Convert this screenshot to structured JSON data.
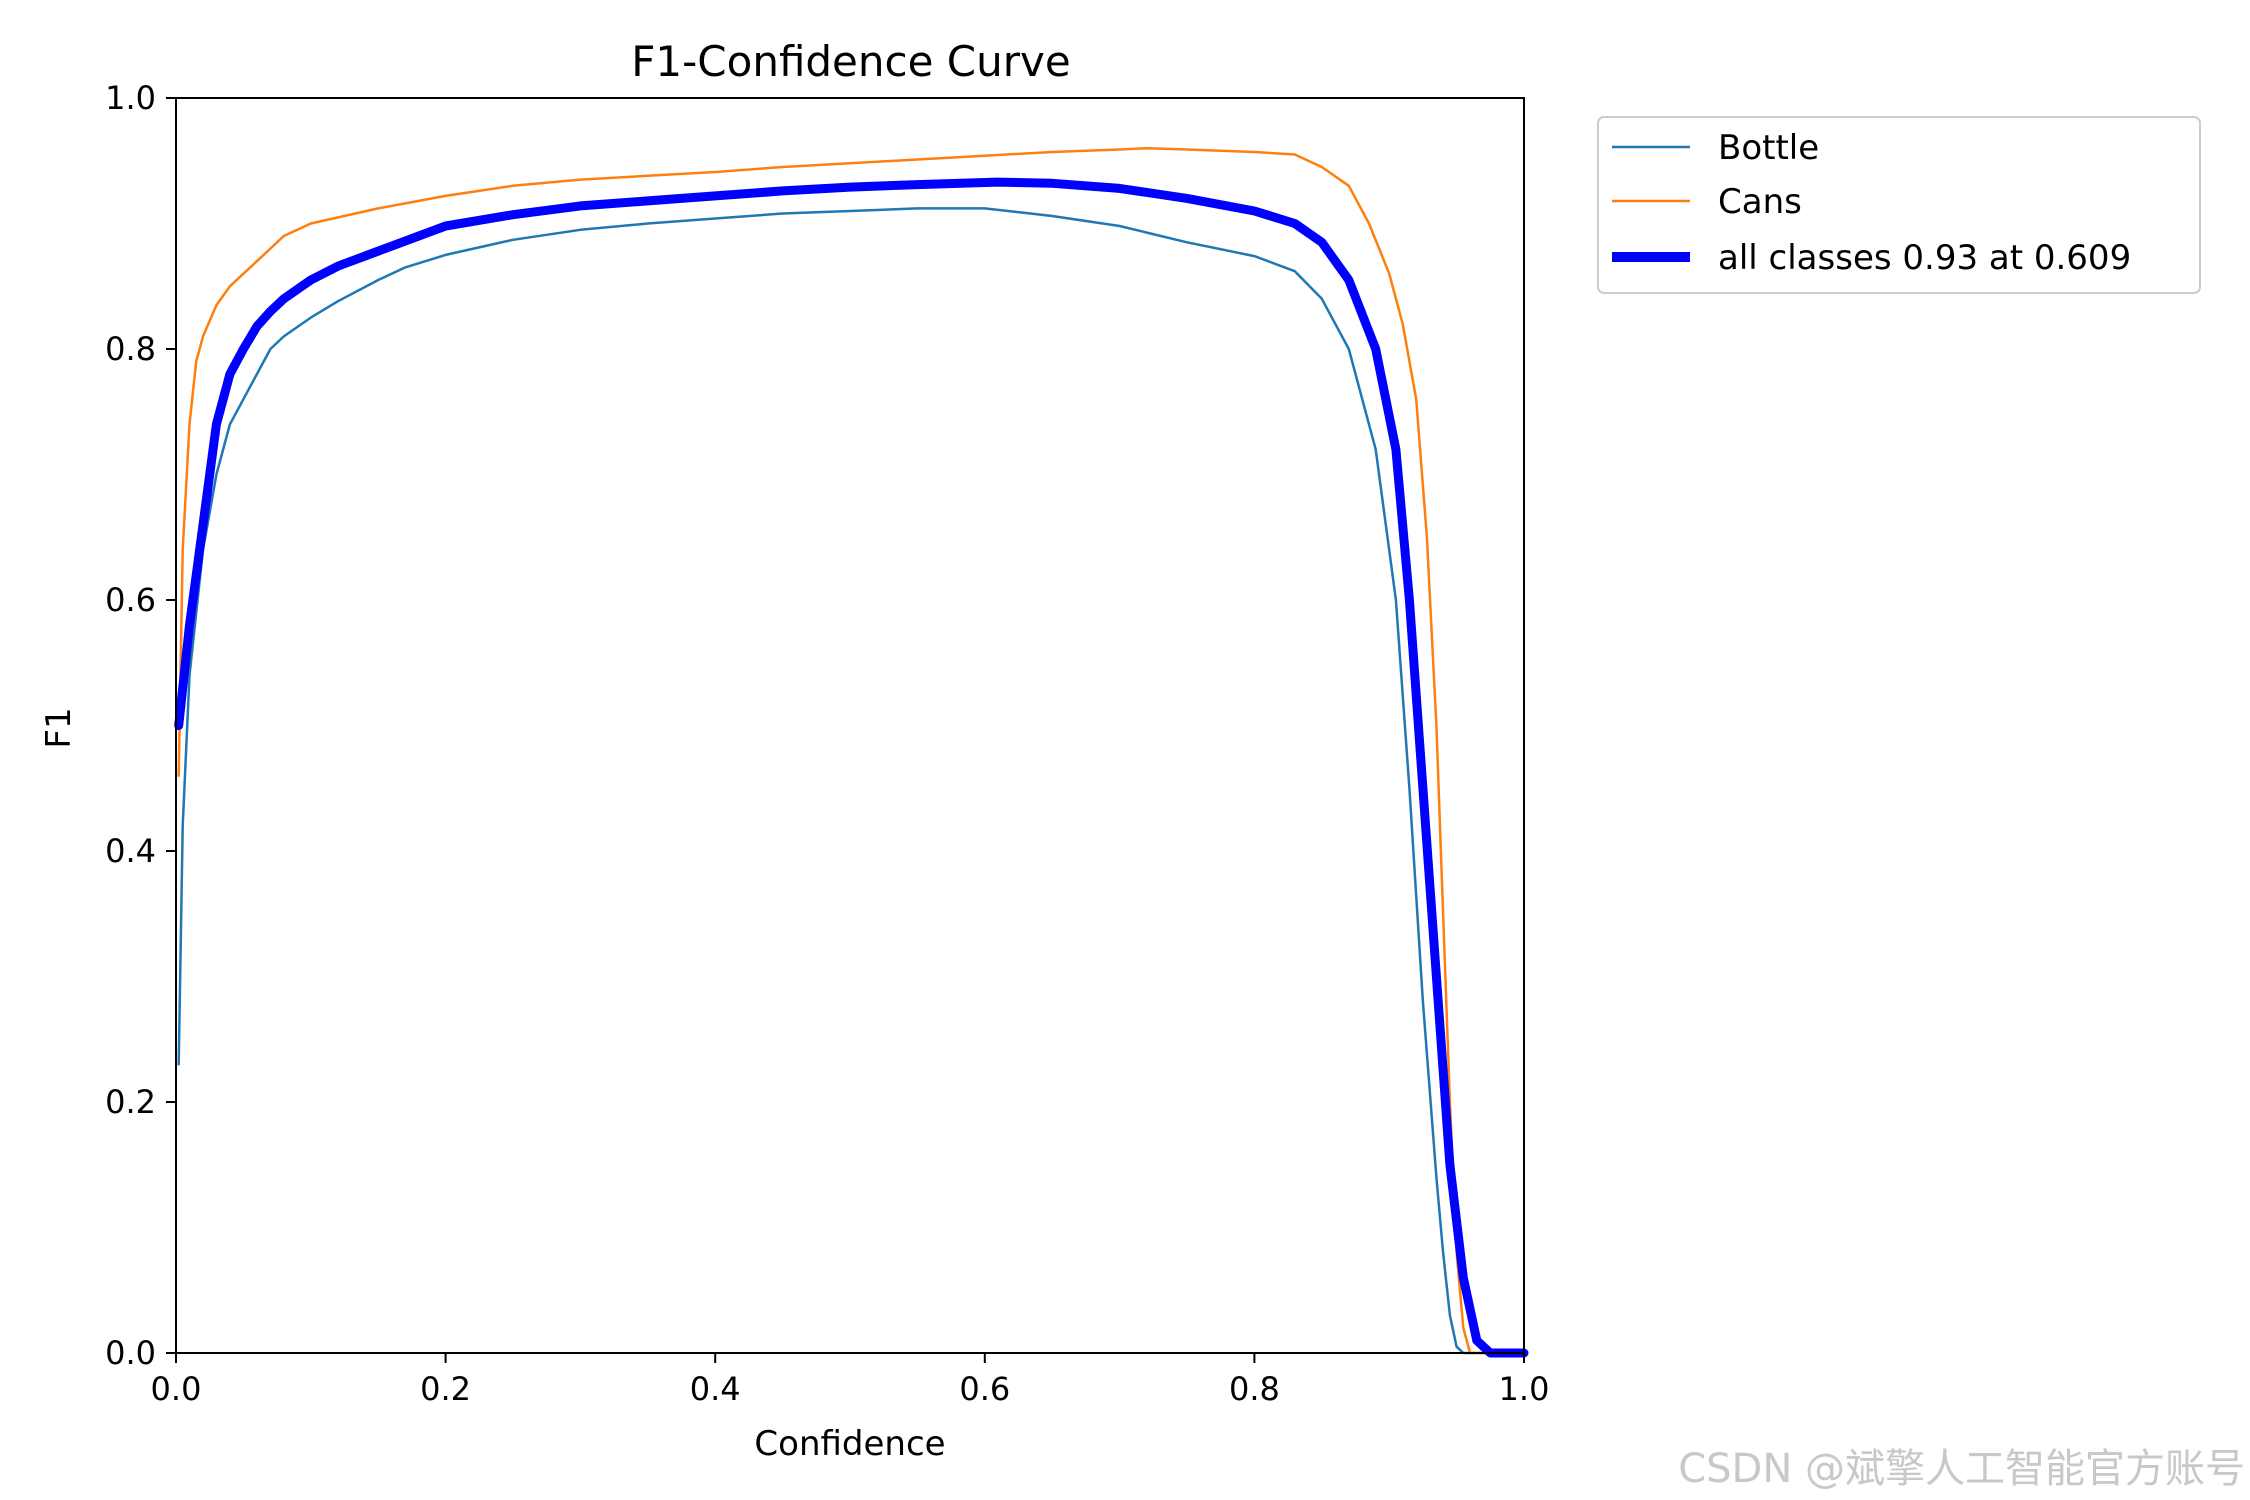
{
  "colors": {
    "bottle": "#1f77b4",
    "cans": "#ff7f0e",
    "all": "#0000ff"
  },
  "watermark": "CSDN @斌擎人工智能官方账号",
  "chart_data": {
    "type": "line",
    "title": "F1-Confidence Curve",
    "xlabel": "Confidence",
    "ylabel": "F1",
    "xlim": [
      0,
      1
    ],
    "ylim": [
      0,
      1
    ],
    "x_ticks": [
      "0.0",
      "0.2",
      "0.4",
      "0.6",
      "0.8",
      "1.0"
    ],
    "y_ticks": [
      "0.0",
      "0.2",
      "0.4",
      "0.6",
      "0.8",
      "1.0"
    ],
    "grid": false,
    "legend_position": "outside-top-right",
    "series": [
      {
        "name": "Bottle",
        "color": "#1f77b4",
        "points": [
          [
            0.002,
            0.23
          ],
          [
            0.005,
            0.42
          ],
          [
            0.01,
            0.54
          ],
          [
            0.02,
            0.64
          ],
          [
            0.03,
            0.7
          ],
          [
            0.04,
            0.74
          ],
          [
            0.05,
            0.76
          ],
          [
            0.06,
            0.78
          ],
          [
            0.07,
            0.8
          ],
          [
            0.08,
            0.81
          ],
          [
            0.1,
            0.825
          ],
          [
            0.12,
            0.838
          ],
          [
            0.15,
            0.855
          ],
          [
            0.17,
            0.865
          ],
          [
            0.2,
            0.875
          ],
          [
            0.25,
            0.887
          ],
          [
            0.3,
            0.895
          ],
          [
            0.35,
            0.9
          ],
          [
            0.4,
            0.904
          ],
          [
            0.45,
            0.908
          ],
          [
            0.5,
            0.91
          ],
          [
            0.55,
            0.912
          ],
          [
            0.6,
            0.912
          ],
          [
            0.65,
            0.906
          ],
          [
            0.7,
            0.898
          ],
          [
            0.75,
            0.885
          ],
          [
            0.8,
            0.874
          ],
          [
            0.83,
            0.862
          ],
          [
            0.85,
            0.84
          ],
          [
            0.87,
            0.8
          ],
          [
            0.89,
            0.72
          ],
          [
            0.905,
            0.6
          ],
          [
            0.915,
            0.45
          ],
          [
            0.925,
            0.28
          ],
          [
            0.935,
            0.14
          ],
          [
            0.94,
            0.08
          ],
          [
            0.945,
            0.03
          ],
          [
            0.95,
            0.005
          ],
          [
            0.955,
            0.0
          ],
          [
            1.0,
            0.0
          ]
        ]
      },
      {
        "name": "Cans",
        "color": "#ff7f0e",
        "points": [
          [
            0.002,
            0.46
          ],
          [
            0.005,
            0.64
          ],
          [
            0.01,
            0.74
          ],
          [
            0.015,
            0.79
          ],
          [
            0.02,
            0.81
          ],
          [
            0.03,
            0.835
          ],
          [
            0.04,
            0.85
          ],
          [
            0.05,
            0.86
          ],
          [
            0.06,
            0.87
          ],
          [
            0.08,
            0.89
          ],
          [
            0.1,
            0.9
          ],
          [
            0.15,
            0.912
          ],
          [
            0.2,
            0.922
          ],
          [
            0.25,
            0.93
          ],
          [
            0.3,
            0.935
          ],
          [
            0.35,
            0.938
          ],
          [
            0.4,
            0.941
          ],
          [
            0.45,
            0.945
          ],
          [
            0.5,
            0.948
          ],
          [
            0.55,
            0.951
          ],
          [
            0.6,
            0.954
          ],
          [
            0.65,
            0.957
          ],
          [
            0.7,
            0.959
          ],
          [
            0.72,
            0.96
          ],
          [
            0.75,
            0.959
          ],
          [
            0.8,
            0.957
          ],
          [
            0.83,
            0.955
          ],
          [
            0.85,
            0.945
          ],
          [
            0.87,
            0.93
          ],
          [
            0.885,
            0.9
          ],
          [
            0.9,
            0.86
          ],
          [
            0.91,
            0.82
          ],
          [
            0.92,
            0.76
          ],
          [
            0.928,
            0.65
          ],
          [
            0.935,
            0.5
          ],
          [
            0.94,
            0.35
          ],
          [
            0.945,
            0.2
          ],
          [
            0.95,
            0.08
          ],
          [
            0.955,
            0.02
          ],
          [
            0.96,
            0.0
          ],
          [
            1.0,
            0.0
          ]
        ]
      },
      {
        "name": "all classes 0.93 at 0.609",
        "color": "#0000ff",
        "points": [
          [
            0.002,
            0.5
          ],
          [
            0.01,
            0.58
          ],
          [
            0.02,
            0.66
          ],
          [
            0.03,
            0.74
          ],
          [
            0.04,
            0.78
          ],
          [
            0.05,
            0.8
          ],
          [
            0.06,
            0.818
          ],
          [
            0.07,
            0.83
          ],
          [
            0.08,
            0.84
          ],
          [
            0.1,
            0.855
          ],
          [
            0.12,
            0.866
          ],
          [
            0.15,
            0.878
          ],
          [
            0.2,
            0.898
          ],
          [
            0.25,
            0.907
          ],
          [
            0.3,
            0.914
          ],
          [
            0.35,
            0.918
          ],
          [
            0.4,
            0.922
          ],
          [
            0.45,
            0.926
          ],
          [
            0.5,
            0.929
          ],
          [
            0.55,
            0.931
          ],
          [
            0.609,
            0.933
          ],
          [
            0.65,
            0.932
          ],
          [
            0.7,
            0.928
          ],
          [
            0.75,
            0.92
          ],
          [
            0.8,
            0.91
          ],
          [
            0.83,
            0.9
          ],
          [
            0.85,
            0.885
          ],
          [
            0.87,
            0.855
          ],
          [
            0.89,
            0.8
          ],
          [
            0.905,
            0.72
          ],
          [
            0.915,
            0.6
          ],
          [
            0.925,
            0.45
          ],
          [
            0.935,
            0.3
          ],
          [
            0.945,
            0.15
          ],
          [
            0.955,
            0.06
          ],
          [
            0.965,
            0.01
          ],
          [
            0.975,
            0.0
          ],
          [
            1.0,
            0.0
          ]
        ]
      }
    ]
  }
}
